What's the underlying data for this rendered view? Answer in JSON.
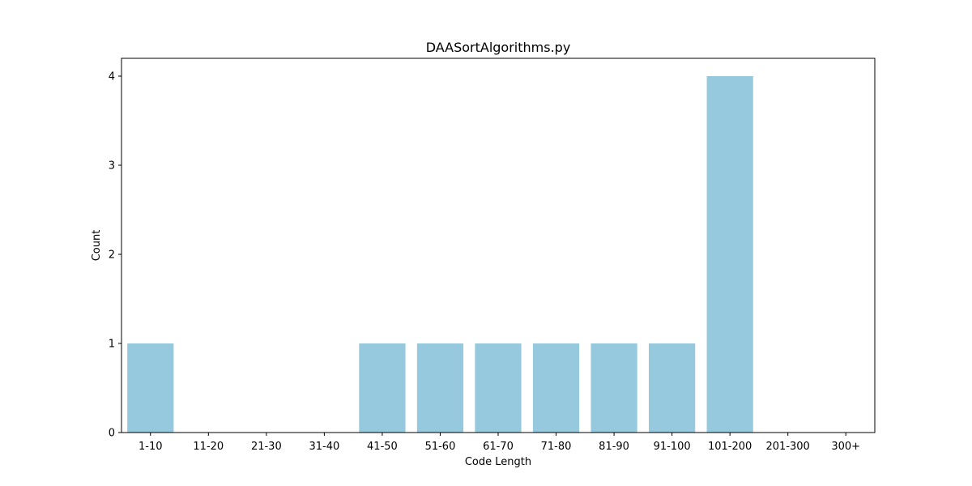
{
  "chart_data": {
    "type": "bar",
    "title": "DAASortAlgorithms.py",
    "xlabel": "Code Length",
    "ylabel": "Count",
    "categories": [
      "1-10",
      "11-20",
      "21-30",
      "31-40",
      "41-50",
      "51-60",
      "61-70",
      "71-80",
      "81-90",
      "91-100",
      "101-200",
      "201-300",
      "300+"
    ],
    "values": [
      1,
      0,
      0,
      0,
      1,
      1,
      1,
      1,
      1,
      1,
      4,
      0,
      0
    ],
    "yticks": [
      0,
      1,
      2,
      3,
      4
    ],
    "ylim": [
      0,
      4.2
    ],
    "grid": false,
    "bar_color": "#96c9de"
  }
}
